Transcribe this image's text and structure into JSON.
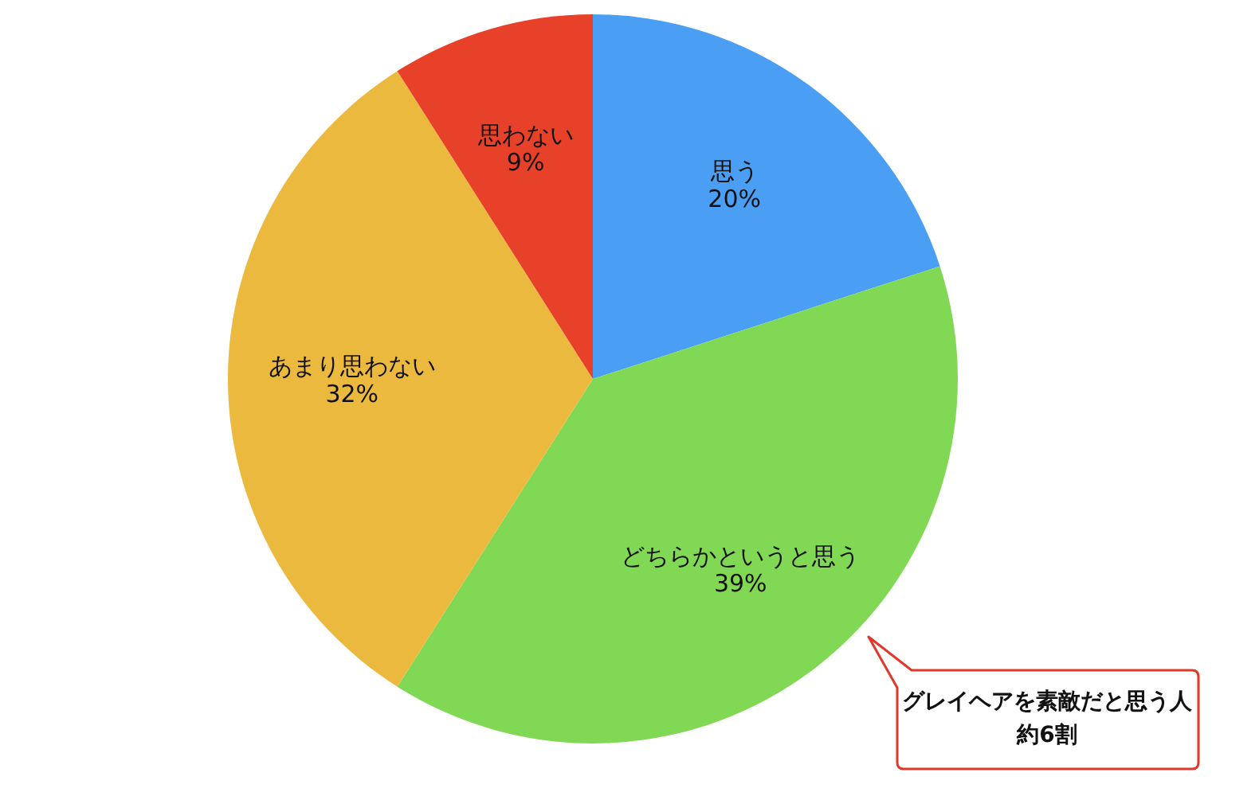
{
  "chart_data": {
    "type": "pie",
    "categories": [
      "思う",
      "どちらかというと思う",
      "あまり思わない",
      "思わない"
    ],
    "values": [
      20,
      39,
      32,
      9
    ],
    "value_labels": [
      "20%",
      "39%",
      "32%",
      "9%"
    ],
    "colors": [
      "#4a9ff5",
      "#80d855",
      "#ecb93f",
      "#e8412a"
    ],
    "annotations": [
      "グレイヘアを素敵だと思う人",
      "約6割"
    ]
  }
}
